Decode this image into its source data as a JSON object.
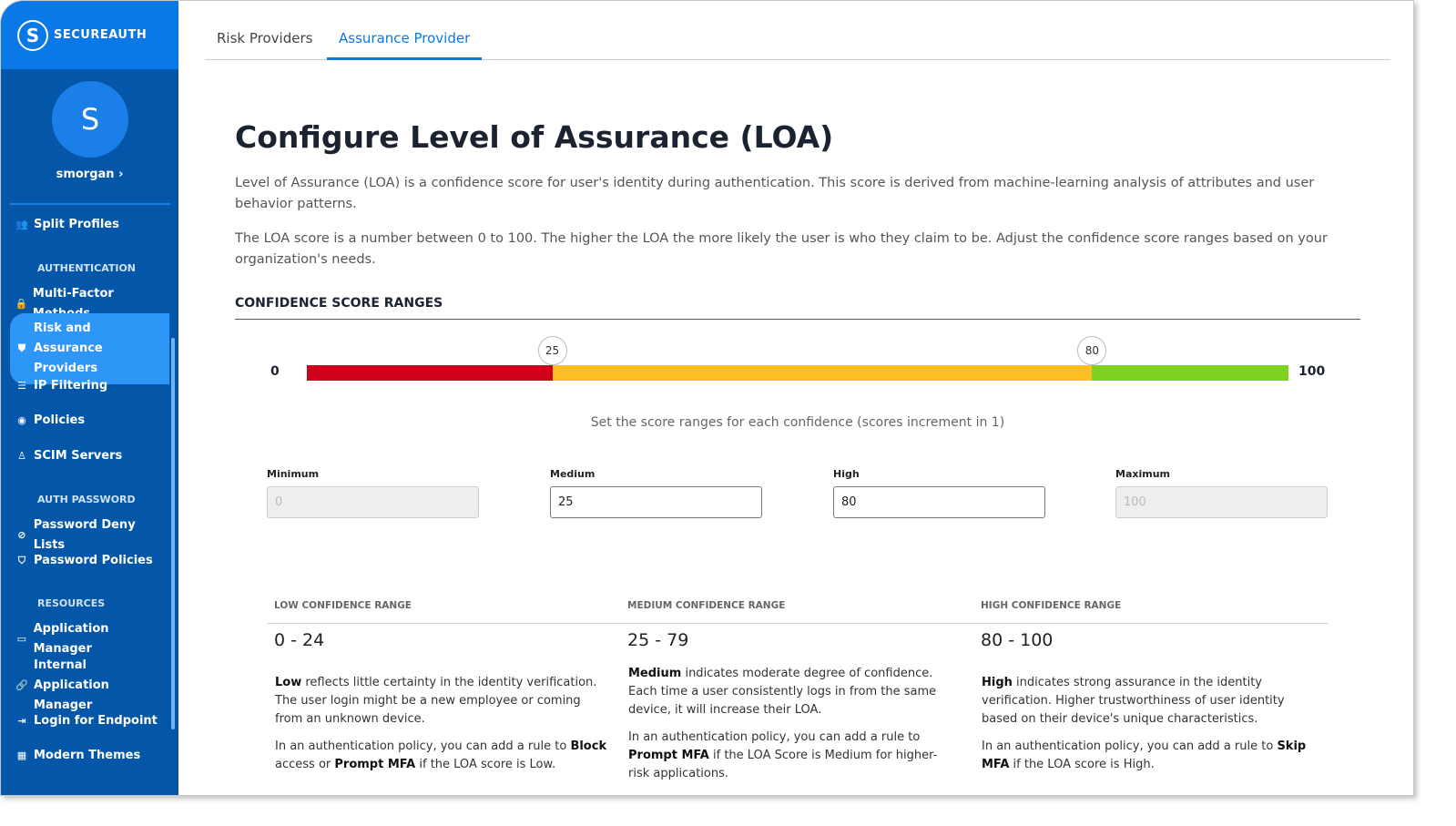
{
  "brand": {
    "logo_text": "SECUREAUTH"
  },
  "user": {
    "initial": "S",
    "name": "smorgan ›"
  },
  "sidebar": {
    "items": [
      {
        "label": "Split Profiles",
        "icon": "users-icon"
      },
      {
        "section": "AUTHENTICATION"
      },
      {
        "label": "Multi-Factor Methods",
        "icon": "lock-icon"
      },
      {
        "label": "Risk and Assurance Providers",
        "icon": "shield-icon",
        "active": true
      },
      {
        "label": "IP Filtering",
        "icon": "list-icon"
      },
      {
        "label": "Policies",
        "icon": "policy-icon"
      },
      {
        "label": "SCIM Servers",
        "icon": "server-user-icon"
      },
      {
        "section": "AUTH PASSWORD"
      },
      {
        "label": "Password Deny Lists",
        "icon": "eye-off-icon"
      },
      {
        "label": "Password Policies",
        "icon": "shield-user-icon"
      },
      {
        "section": "RESOURCES"
      },
      {
        "label": "Application Manager",
        "icon": "monitor-icon"
      },
      {
        "label": "Internal Application Manager",
        "icon": "link-icon"
      },
      {
        "label": "Login for Endpoint",
        "icon": "login-icon"
      },
      {
        "label": "Modern Themes",
        "icon": "grid-icon"
      }
    ]
  },
  "tabs": [
    {
      "label": "Risk Providers"
    },
    {
      "label": "Assurance Provider",
      "active": true
    }
  ],
  "main": {
    "title": "Configure Level of Assurance (LOA)",
    "intro1": "Level of Assurance (LOA) is a confidence score for user's identity during authentication. This score is derived from machine-learning analysis of attributes and user behavior patterns.",
    "intro2": "The LOA score is a number between 0 to 100. The higher the LOA the more likely the user is who they claim to be. Adjust the confidence score ranges based on your organization's needs.",
    "section": "CONFIDENCE SCORE RANGES",
    "slider": {
      "min": "0",
      "max": "100",
      "low": 25,
      "high": 80,
      "low_label": "25",
      "high_label": "80",
      "colors": {
        "low": "#d0021b",
        "medium": "#fbbf24",
        "high": "#7ed321"
      }
    },
    "hint": "Set the score ranges for each confidence (scores increment in 1)",
    "fields": [
      {
        "label": "Minimum",
        "value": "0",
        "disabled": true
      },
      {
        "label": "Medium",
        "value": "25"
      },
      {
        "label": "High",
        "value": "80"
      },
      {
        "label": "Maximum",
        "value": "100",
        "disabled": true
      }
    ],
    "ranges": [
      {
        "header": "LOW CONFIDENCE RANGE",
        "range": "0 - 24",
        "d1b": "Low",
        "d1": " reflects little certainty in the identity verification. The user login might be a new employee or coming from an unknown device.",
        "d2a": "In an authentication policy, you can add a rule to ",
        "d2b": "Block",
        "d2c": " access or ",
        "d2d": "Prompt MFA",
        "d2e": " if the LOA score is Low."
      },
      {
        "header": "MEDIUM CONFIDENCE RANGE",
        "range": "25 - 79",
        "d1b": "Medium",
        "d1": " indicates moderate degree of confidence. Each time a user consistently logs in from the same device, it will increase their LOA.",
        "d2a": "In an authentication policy, you can add a rule to ",
        "d2b": "Prompt MFA",
        "d2c": " if the LOA Score is Medium for higher-risk applications."
      },
      {
        "header": "HIGH CONFIDENCE RANGE",
        "range": "80 - 100",
        "d1b": "High",
        "d1": " indicates strong assurance in the identity verification. Higher trustworthiness of user identity based on their device's unique characteristics.",
        "d2a": "In an authentication policy, you can add a rule to ",
        "d2b": "Skip MFA",
        "d2c": " if the LOA score is High."
      }
    ]
  }
}
